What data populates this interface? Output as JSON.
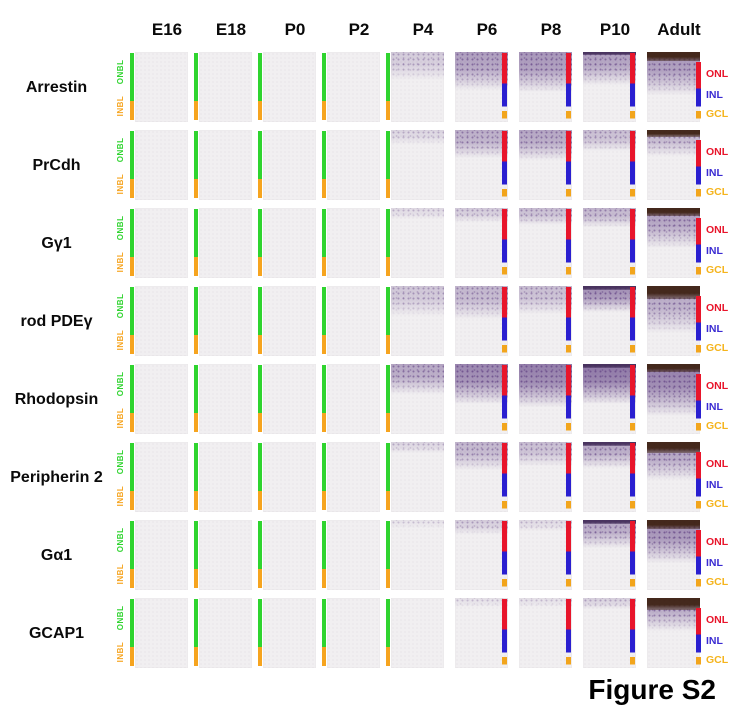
{
  "figure": {
    "label": "Figure S2"
  },
  "columns": [
    "E16",
    "E18",
    "P0",
    "P2",
    "P4",
    "P6",
    "P8",
    "P10",
    "Adult"
  ],
  "layer_labels": {
    "onbl": "ONBL",
    "inbl": "INBL",
    "right": [
      "ONL",
      "INL",
      "GCL"
    ]
  },
  "bar_types": [
    "nbl",
    "nbl",
    "nbl",
    "nbl",
    "nbl",
    "layers",
    "layers",
    "layers",
    "layers-labeled"
  ],
  "rows": [
    {
      "label": "Arrestin",
      "panels": [
        [
          0,
          0,
          0
        ],
        [
          0,
          0,
          0
        ],
        [
          0,
          0,
          0
        ],
        [
          0,
          0,
          0
        ],
        [
          0.22,
          0.3,
          0
        ],
        [
          0.5,
          0.4,
          0
        ],
        [
          0.55,
          0.42,
          0
        ],
        [
          0.5,
          0.35,
          0.04
        ],
        [
          0.55,
          0.45,
          0.13
        ]
      ]
    },
    {
      "label": "PrCdh",
      "panels": [
        [
          0,
          0,
          0
        ],
        [
          0,
          0,
          0
        ],
        [
          0,
          0,
          0
        ],
        [
          0,
          0,
          0
        ],
        [
          0.15,
          0.15,
          0
        ],
        [
          0.4,
          0.3,
          0
        ],
        [
          0.45,
          0.32,
          0
        ],
        [
          0.3,
          0.22,
          0
        ],
        [
          0.35,
          0.28,
          0.1
        ]
      ]
    },
    {
      "label": "Gγ1",
      "panels": [
        [
          0,
          0,
          0
        ],
        [
          0,
          0,
          0
        ],
        [
          0,
          0,
          0
        ],
        [
          0,
          0,
          0
        ],
        [
          0.12,
          0.12,
          0
        ],
        [
          0.22,
          0.15,
          0
        ],
        [
          0.3,
          0.18,
          0
        ],
        [
          0.35,
          0.2,
          0
        ],
        [
          0.5,
          0.42,
          0.12
        ]
      ]
    },
    {
      "label": "rod PDEγ",
      "panels": [
        [
          0,
          0,
          0
        ],
        [
          0,
          0,
          0
        ],
        [
          0,
          0,
          0
        ],
        [
          0,
          0,
          0
        ],
        [
          0.25,
          0.32,
          0
        ],
        [
          0.35,
          0.35,
          0
        ],
        [
          0.3,
          0.3,
          0
        ],
        [
          0.6,
          0.28,
          0.05
        ],
        [
          0.45,
          0.5,
          0.18
        ]
      ]
    },
    {
      "label": "Rhodopsin",
      "panels": [
        [
          0,
          0,
          0
        ],
        [
          0,
          0,
          0
        ],
        [
          0,
          0,
          0
        ],
        [
          0,
          0,
          0
        ],
        [
          0.45,
          0.32,
          0
        ],
        [
          0.65,
          0.42,
          0
        ],
        [
          0.7,
          0.45,
          0
        ],
        [
          0.75,
          0.42,
          0.06
        ],
        [
          0.7,
          0.55,
          0.12
        ]
      ]
    },
    {
      "label": "Peripherin 2",
      "panels": [
        [
          0,
          0,
          0
        ],
        [
          0,
          0,
          0
        ],
        [
          0,
          0,
          0
        ],
        [
          0,
          0,
          0
        ],
        [
          0.15,
          0.12,
          0
        ],
        [
          0.35,
          0.3,
          0
        ],
        [
          0.3,
          0.25,
          0
        ],
        [
          0.45,
          0.28,
          0.05
        ],
        [
          0.5,
          0.4,
          0.15
        ]
      ]
    },
    {
      "label": "Gα1",
      "panels": [
        [
          0,
          0,
          0
        ],
        [
          0,
          0,
          0
        ],
        [
          0,
          0,
          0
        ],
        [
          0,
          0,
          0
        ],
        [
          0.06,
          0.08,
          0
        ],
        [
          0.2,
          0.15,
          0
        ],
        [
          0.12,
          0.12,
          0
        ],
        [
          0.45,
          0.3,
          0.06
        ],
        [
          0.6,
          0.45,
          0.13
        ]
      ]
    },
    {
      "label": "GCAP1",
      "panels": [
        [
          0,
          0,
          0
        ],
        [
          0,
          0,
          0
        ],
        [
          0,
          0,
          0
        ],
        [
          0,
          0,
          0
        ],
        [
          0,
          0,
          0
        ],
        [
          0.08,
          0.1,
          0
        ],
        [
          0.08,
          0.1,
          0
        ],
        [
          0.18,
          0.12,
          0
        ],
        [
          0.45,
          0.35,
          0.17
        ]
      ]
    }
  ],
  "colors": {
    "onbl_green": "#2fd42f",
    "inbl_orange": "#f6a41f",
    "onl_red": "#e8152b",
    "inl_blue": "#2a1fd0",
    "gcl_bar_orange": "#f2a51c",
    "onl_label": "#e8152b",
    "inl_label": "#3a2bd2",
    "gcl_label": "#f5b41c",
    "panel_bg": "#f1eff1",
    "stain_rgb": "108,78,140",
    "adult_brown_rgb": "64,36,22",
    "dark_edge_rgb": "70,48,92"
  }
}
